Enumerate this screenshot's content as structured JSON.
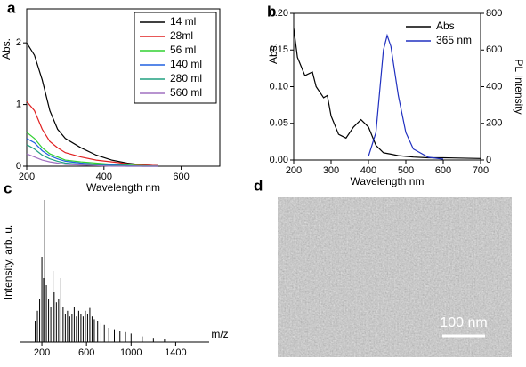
{
  "chart_data": [
    {
      "type": "line",
      "panel": "a",
      "xlabel": "Wavelength nm",
      "ylabel": "Abs.",
      "x": [
        200,
        220,
        240,
        260,
        280,
        300,
        340,
        380,
        420,
        460,
        500,
        540
      ],
      "xlim": [
        200,
        700
      ],
      "xticks": [
        200,
        400,
        600
      ],
      "ylim": [
        0,
        2.55
      ],
      "yticks": [
        0,
        1,
        2
      ],
      "legend": "top-right",
      "legend_box": true,
      "series": [
        {
          "name": "14 ml",
          "color": "#000000",
          "values": [
            2.0,
            1.8,
            1.4,
            0.9,
            0.6,
            0.45,
            0.3,
            0.18,
            0.1,
            0.05,
            0.02,
            0.01
          ]
        },
        {
          "name": "28ml",
          "color": "#e02020",
          "values": [
            1.05,
            0.9,
            0.6,
            0.4,
            0.3,
            0.22,
            0.15,
            0.1,
            0.07,
            0.04,
            0.02,
            0.01
          ]
        },
        {
          "name": "56 ml",
          "color": "#30d030",
          "values": [
            0.55,
            0.45,
            0.3,
            0.2,
            0.15,
            0.1,
            0.07,
            0.05,
            0.03,
            0.02,
            0.01,
            0
          ]
        },
        {
          "name": "140 ml",
          "color": "#2060e0",
          "values": [
            0.45,
            0.38,
            0.25,
            0.17,
            0.12,
            0.08,
            0.05,
            0.03,
            0.02,
            0.01,
            0,
            0
          ]
        },
        {
          "name": "280 ml",
          "color": "#20a080",
          "values": [
            0.35,
            0.28,
            0.18,
            0.12,
            0.08,
            0.05,
            0.03,
            0.02,
            0.01,
            0,
            0,
            0
          ]
        },
        {
          "name": "560 ml",
          "color": "#a070c0",
          "values": [
            0.2,
            0.15,
            0.1,
            0.07,
            0.05,
            0.03,
            0.02,
            0.01,
            0,
            0,
            0,
            0
          ]
        }
      ]
    },
    {
      "type": "line",
      "panel": "b",
      "xlabel": "Wavelength nm",
      "ylabel": "Abs.",
      "y2label": "PL Intensity",
      "x": [
        200,
        210,
        230,
        250,
        260,
        280,
        290,
        300,
        320,
        340,
        360,
        380,
        400,
        420,
        440,
        450,
        460,
        480,
        500,
        520,
        560,
        600,
        700
      ],
      "xlim": [
        200,
        700
      ],
      "xticks": [
        200,
        300,
        400,
        500,
        600,
        700
      ],
      "ylim": [
        0,
        0.2
      ],
      "yticks": [
        {
          "value": 0,
          "label": "0.00"
        },
        0.05,
        {
          "value": 0.1,
          "label": "0.10"
        },
        0.15,
        {
          "value": 0.2,
          "label": "0.20"
        }
      ],
      "y2lim": [
        0,
        800
      ],
      "y2ticks": [
        0,
        200,
        400,
        600,
        800
      ],
      "legend": "top-right",
      "legend_box": false,
      "series": [
        {
          "name": "Abs",
          "color": "#000000",
          "values": [
            0.18,
            0.14,
            0.115,
            0.12,
            0.1,
            0.085,
            0.088,
            0.06,
            0.035,
            0.03,
            0.045,
            0.055,
            0.045,
            0.02,
            0.01,
            0.009,
            0.008,
            0.006,
            0.005,
            0.004,
            0.003,
            0.003,
            0.002
          ]
        },
        {
          "name": "365 nm",
          "color": "#2030c0",
          "axis": "y2",
          "values": [
            null,
            null,
            null,
            null,
            null,
            null,
            null,
            null,
            null,
            null,
            null,
            null,
            20,
            150,
            600,
            680,
            620,
            350,
            150,
            60,
            15,
            5,
            null
          ]
        }
      ]
    },
    {
      "type": "stem",
      "panel": "c",
      "xlabel": "m/z",
      "ylabel": "Intensity, arb. u.",
      "x": [
        140,
        160,
        180,
        200,
        215,
        225,
        240,
        260,
        280,
        300,
        310,
        330,
        350,
        370,
        390,
        410,
        430,
        450,
        470,
        490,
        510,
        530,
        550,
        570,
        590,
        610,
        630,
        650,
        670,
        700,
        730,
        760,
        800,
        850,
        900,
        950,
        1000,
        1100,
        1200,
        1300
      ],
      "values": [
        15,
        22,
        30,
        60,
        45,
        100,
        40,
        30,
        25,
        50,
        35,
        28,
        30,
        45,
        25,
        20,
        22,
        18,
        20,
        25,
        18,
        22,
        20,
        18,
        22,
        20,
        24,
        18,
        16,
        15,
        14,
        12,
        10,
        9,
        8,
        7,
        6,
        4,
        3,
        2
      ],
      "xlim": [
        0,
        1700
      ],
      "xticks": [
        200,
        600,
        1000,
        1400
      ],
      "ylim": [
        0,
        100
      ],
      "color": "#000000"
    },
    {
      "type": "image",
      "panel": "d",
      "annotation": "100 nm"
    }
  ]
}
